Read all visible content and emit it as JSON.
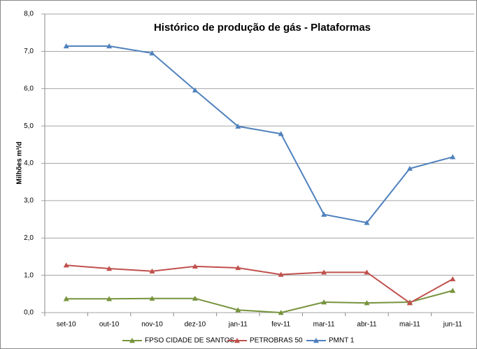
{
  "chart_data": {
    "type": "line",
    "title": "Histórico de produção de gás - Plataformas",
    "y_label": "Milhões m³/d",
    "categories": [
      "set-10",
      "out-10",
      "nov-10",
      "dez-10",
      "jan-11",
      "fev-11",
      "mar-11",
      "abr-11",
      "mai-11",
      "jun-11"
    ],
    "series": [
      {
        "name": "FPSO CIDADE DE SANTOS",
        "color": "#77933c",
        "values": [
          0.37,
          0.37,
          0.38,
          0.38,
          0.07,
          0.0,
          0.28,
          0.26,
          0.28,
          0.59
        ]
      },
      {
        "name": "PETROBRAS 50",
        "color": "#c0504d",
        "values": [
          1.27,
          1.18,
          1.11,
          1.24,
          1.2,
          1.02,
          1.08,
          1.08,
          0.26,
          0.9
        ]
      },
      {
        "name": "PMNT 1",
        "color": "#4f81bd",
        "values": [
          7.14,
          7.14,
          6.95,
          5.96,
          4.99,
          4.79,
          2.63,
          2.41,
          3.86,
          4.17
        ]
      }
    ],
    "ylim": [
      0,
      8
    ],
    "yticks": [
      {
        "value": 0,
        "label": "0,0"
      },
      {
        "value": 1,
        "label": "1,0"
      },
      {
        "value": 2,
        "label": "2,0"
      },
      {
        "value": 3,
        "label": "3,0"
      },
      {
        "value": 4,
        "label": "4,0"
      },
      {
        "value": 5,
        "label": "5,0"
      },
      {
        "value": 6,
        "label": "6,0"
      },
      {
        "value": 7,
        "label": "7,0"
      },
      {
        "value": 8,
        "label": "8,0"
      }
    ],
    "grid": true,
    "legend": "bottom"
  }
}
